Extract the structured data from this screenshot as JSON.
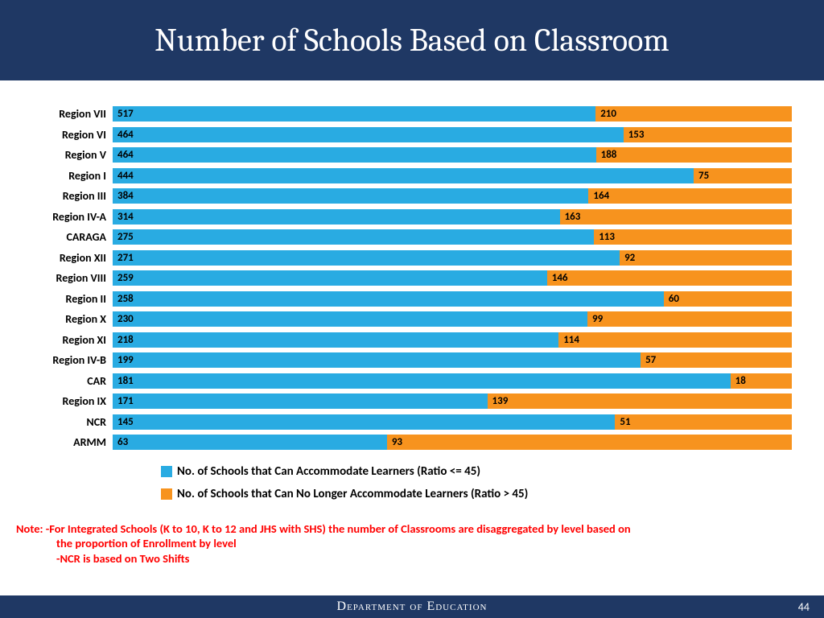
{
  "header": {
    "title": "Number of Schools Based on Classroom"
  },
  "chart": {
    "type": "bar",
    "orientation": "horizontal",
    "stacked_percent": true,
    "colors": {
      "blue": "#29abe2",
      "orange": "#f7931e",
      "grid": "#d9d9d9",
      "bg": "#ffffff"
    },
    "label_fontsize": 14,
    "value_fontsize": 13,
    "rows": [
      {
        "label": "Region VII",
        "blue": 517,
        "orange": 210
      },
      {
        "label": "Region VI",
        "blue": 464,
        "orange": 153
      },
      {
        "label": "Region V",
        "blue": 464,
        "orange": 188
      },
      {
        "label": "Region I",
        "blue": 444,
        "orange": 75
      },
      {
        "label": "Region III",
        "blue": 384,
        "orange": 164
      },
      {
        "label": "Region IV-A",
        "blue": 314,
        "orange": 163
      },
      {
        "label": "CARAGA",
        "blue": 275,
        "orange": 113
      },
      {
        "label": "Region XII",
        "blue": 271,
        "orange": 92
      },
      {
        "label": "Region VIII",
        "blue": 259,
        "orange": 146
      },
      {
        "label": "Region II",
        "blue": 258,
        "orange": 60
      },
      {
        "label": "Region X",
        "blue": 230,
        "orange": 99
      },
      {
        "label": "Region XI",
        "blue": 218,
        "orange": 114
      },
      {
        "label": "Region IV-B",
        "blue": 199,
        "orange": 57
      },
      {
        "label": "CAR",
        "blue": 181,
        "orange": 18
      },
      {
        "label": "Region IX",
        "blue": 171,
        "orange": 139
      },
      {
        "label": "NCR",
        "blue": 145,
        "orange": 51
      },
      {
        "label": "ARMM",
        "blue": 63,
        "orange": 93
      }
    ]
  },
  "legend": {
    "item1": "No. of Schools that Can Accommodate Learners (Ratio <= 45)",
    "item2": "No. of Schools that Can No Longer Accommodate Learners (Ratio > 45)"
  },
  "note": {
    "prefix": "Note: ",
    "line1": "-For Integrated Schools (K to 10, K to 12 and JHS with SHS) the number of Classrooms are disaggregated by level based on",
    "line2": "the proportion of Enrollment by level",
    "line3": "-NCR is based on Two Shifts"
  },
  "footer": {
    "text": "Department of Education",
    "page": "44"
  }
}
